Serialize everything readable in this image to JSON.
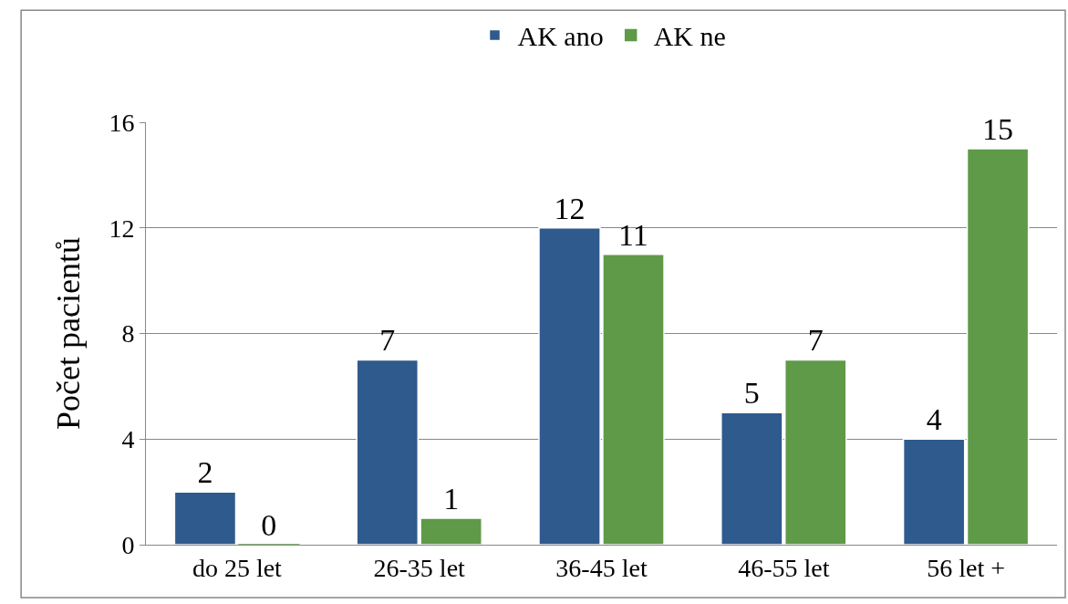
{
  "chart_data": {
    "type": "bar",
    "ylabel": "Počet pacientů",
    "categories": [
      "do 25 let",
      "26-35 let",
      "36-45 let",
      "46-55 let",
      "56 let +"
    ],
    "series": [
      {
        "name": "AK ano",
        "color": "#2e5a8e",
        "values": [
          2,
          7,
          12,
          5,
          4
        ]
      },
      {
        "name": "AK ne",
        "color": "#5e9a48",
        "values": [
          0,
          1,
          11,
          7,
          15
        ]
      }
    ],
    "ylim": [
      0,
      16
    ],
    "yticks": [
      0,
      4,
      8,
      12,
      16
    ],
    "grid": "y",
    "legend": "top",
    "data_labels": true
  }
}
